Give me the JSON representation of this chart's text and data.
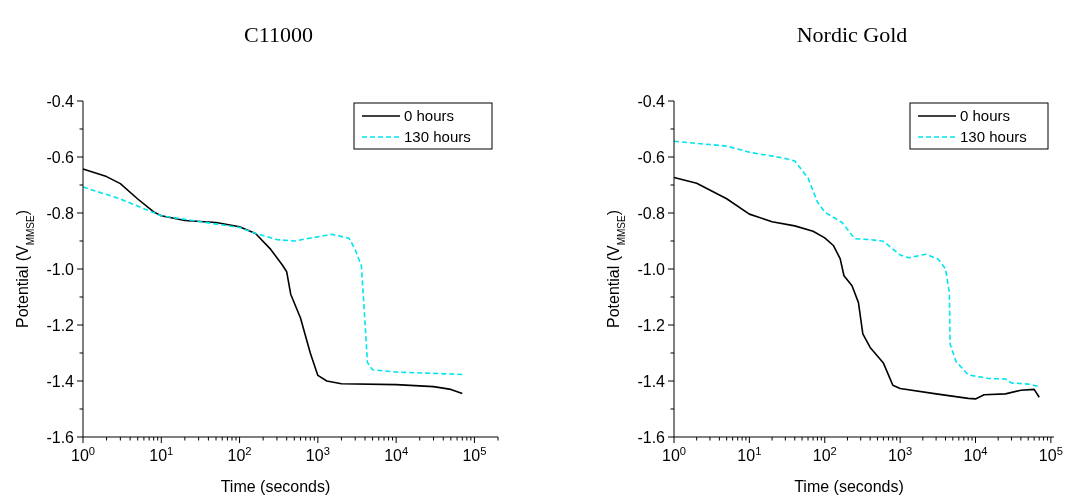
{
  "chart_data": [
    {
      "type": "line",
      "title": "C11000",
      "xlabel": "Time (seconds)",
      "ylabel": "Potential (V$_{MMSE}$)",
      "log": "x",
      "legend": "top right",
      "xlim": [
        1,
        200000
      ],
      "ylim": [
        -1.6,
        -0.4
      ],
      "xticks": [
        {
          "value": 1,
          "label": "10$^{0}$"
        },
        {
          "value": 2,
          "label": null
        },
        {
          "value": 3,
          "label": null
        },
        {
          "value": 4,
          "label": null
        },
        {
          "value": 5,
          "label": null
        },
        {
          "value": 6,
          "label": null
        },
        {
          "value": 7,
          "label": null
        },
        {
          "value": 8,
          "label": null
        },
        {
          "value": 9,
          "label": null
        },
        {
          "value": 10,
          "label": "10$^{1}$"
        },
        {
          "value": 20,
          "label": null
        },
        {
          "value": 30,
          "label": null
        },
        {
          "value": 40,
          "label": null
        },
        {
          "value": 50,
          "label": null
        },
        {
          "value": 60,
          "label": null
        },
        {
          "value": 70,
          "label": null
        },
        {
          "value": 80,
          "label": null
        },
        {
          "value": 90,
          "label": null
        },
        {
          "value": 100,
          "label": "10$^{2}$"
        },
        {
          "value": 200,
          "label": null
        },
        {
          "value": 300,
          "label": null
        },
        {
          "value": 400,
          "label": null
        },
        {
          "value": 500,
          "label": null
        },
        {
          "value": 600,
          "label": null
        },
        {
          "value": 700,
          "label": null
        },
        {
          "value": 800,
          "label": null
        },
        {
          "value": 900,
          "label": null
        },
        {
          "value": 1000,
          "label": "10$^{3}$"
        },
        {
          "value": 2000,
          "label": null
        },
        {
          "value": 3000,
          "label": null
        },
        {
          "value": 4000,
          "label": null
        },
        {
          "value": 5000,
          "label": null
        },
        {
          "value": 6000,
          "label": null
        },
        {
          "value": 7000,
          "label": null
        },
        {
          "value": 8000,
          "label": null
        },
        {
          "value": 9000,
          "label": null
        },
        {
          "value": 10000,
          "label": "10$^{4}$"
        },
        {
          "value": 20000,
          "label": null
        },
        {
          "value": 30000,
          "label": null
        },
        {
          "value": 40000,
          "label": null
        },
        {
          "value": 50000,
          "label": null
        },
        {
          "value": 60000,
          "label": null
        },
        {
          "value": 70000,
          "label": null
        },
        {
          "value": 80000,
          "label": null
        },
        {
          "value": 90000,
          "label": null
        },
        {
          "value": 100000,
          "label": "10$^{5}$"
        },
        {
          "value": 200000,
          "label": null
        }
      ],
      "yticks": [
        {
          "value": -1.6,
          "label": "-1.6"
        },
        {
          "value": -1.5,
          "label": null
        },
        {
          "value": -1.4,
          "label": "-1.4"
        },
        {
          "value": -1.3,
          "label": null
        },
        {
          "value": -1.2,
          "label": "-1.2"
        },
        {
          "value": -1.1,
          "label": null
        },
        {
          "value": -1.0,
          "label": "-1.0"
        },
        {
          "value": -0.9,
          "label": null
        },
        {
          "value": -0.8,
          "label": "-0.8"
        },
        {
          "value": -0.7,
          "label": null
        },
        {
          "value": -0.6,
          "label": "-0.6"
        },
        {
          "value": -0.5,
          "label": null
        },
        {
          "value": -0.4,
          "label": "-0.4"
        }
      ],
      "series": [
        {
          "name": "0 hours",
          "color": "#000000",
          "line_style": "solid",
          "x": [
            1,
            2,
            3,
            5,
            8,
            10,
            20,
            50,
            100,
            160,
            250,
            350,
            400,
            450,
            600,
            800,
            1000,
            1300,
            2000,
            10000,
            30000,
            50000,
            70000
          ],
          "values": [
            -0.643,
            -0.67,
            -0.695,
            -0.75,
            -0.796,
            -0.81,
            -0.827,
            -0.834,
            -0.849,
            -0.873,
            -0.93,
            -0.985,
            -1.01,
            -1.09,
            -1.175,
            -1.3,
            -1.38,
            -1.4,
            -1.41,
            -1.413,
            -1.42,
            -1.43,
            -1.445
          ]
        },
        {
          "name": "130 hours",
          "color": "#00e5ee",
          "line_style": "dashed",
          "x": [
            1,
            3,
            10,
            30,
            100,
            150,
            300,
            500,
            1000,
            1500,
            2500,
            3000,
            3600,
            4000,
            4300,
            5000,
            10000,
            50000,
            70000
          ],
          "values": [
            -0.707,
            -0.75,
            -0.81,
            -0.83,
            -0.852,
            -0.87,
            -0.895,
            -0.9,
            -0.885,
            -0.876,
            -0.89,
            -0.93,
            -0.99,
            -1.19,
            -1.334,
            -1.36,
            -1.368,
            -1.375,
            -1.377
          ]
        }
      ]
    },
    {
      "type": "line",
      "title": "Nordic Gold",
      "xlabel": "Time (seconds)",
      "ylabel": "Potential (V$_{MMSE}$)",
      "log": "x",
      "legend": "top right",
      "xlim": [
        1,
        110000
      ],
      "ylim": [
        -1.6,
        -0.4
      ],
      "xticks": [
        {
          "value": 1,
          "label": "10$^{0}$"
        },
        {
          "value": 2,
          "label": null
        },
        {
          "value": 3,
          "label": null
        },
        {
          "value": 4,
          "label": null
        },
        {
          "value": 5,
          "label": null
        },
        {
          "value": 6,
          "label": null
        },
        {
          "value": 7,
          "label": null
        },
        {
          "value": 8,
          "label": null
        },
        {
          "value": 9,
          "label": null
        },
        {
          "value": 10,
          "label": "10$^{1}$"
        },
        {
          "value": 20,
          "label": null
        },
        {
          "value": 30,
          "label": null
        },
        {
          "value": 40,
          "label": null
        },
        {
          "value": 50,
          "label": null
        },
        {
          "value": 60,
          "label": null
        },
        {
          "value": 70,
          "label": null
        },
        {
          "value": 80,
          "label": null
        },
        {
          "value": 90,
          "label": null
        },
        {
          "value": 100,
          "label": "10$^{2}$"
        },
        {
          "value": 200,
          "label": null
        },
        {
          "value": 300,
          "label": null
        },
        {
          "value": 400,
          "label": null
        },
        {
          "value": 500,
          "label": null
        },
        {
          "value": 600,
          "label": null
        },
        {
          "value": 700,
          "label": null
        },
        {
          "value": 800,
          "label": null
        },
        {
          "value": 900,
          "label": null
        },
        {
          "value": 1000,
          "label": "10$^{3}$"
        },
        {
          "value": 2000,
          "label": null
        },
        {
          "value": 3000,
          "label": null
        },
        {
          "value": 4000,
          "label": null
        },
        {
          "value": 5000,
          "label": null
        },
        {
          "value": 6000,
          "label": null
        },
        {
          "value": 7000,
          "label": null
        },
        {
          "value": 8000,
          "label": null
        },
        {
          "value": 9000,
          "label": null
        },
        {
          "value": 10000,
          "label": "10$^{4}$"
        },
        {
          "value": 20000,
          "label": null
        },
        {
          "value": 30000,
          "label": null
        },
        {
          "value": 40000,
          "label": null
        },
        {
          "value": 50000,
          "label": null
        },
        {
          "value": 60000,
          "label": null
        },
        {
          "value": 70000,
          "label": null
        },
        {
          "value": 80000,
          "label": null
        },
        {
          "value": 90000,
          "label": null
        },
        {
          "value": 100000,
          "label": "10$^{5}$"
        }
      ],
      "yticks": [
        {
          "value": -1.6,
          "label": "-1.6"
        },
        {
          "value": -1.5,
          "label": null
        },
        {
          "value": -1.4,
          "label": "-1.4"
        },
        {
          "value": -1.3,
          "label": null
        },
        {
          "value": -1.2,
          "label": "-1.2"
        },
        {
          "value": -1.1,
          "label": null
        },
        {
          "value": -1.0,
          "label": "-1.0"
        },
        {
          "value": -0.9,
          "label": null
        },
        {
          "value": -0.8,
          "label": "-0.8"
        },
        {
          "value": -0.7,
          "label": null
        },
        {
          "value": -0.6,
          "label": "-0.6"
        },
        {
          "value": -0.5,
          "label": null
        },
        {
          "value": -0.4,
          "label": "-0.4"
        }
      ],
      "series": [
        {
          "name": "0 hours",
          "color": "#000000",
          "line_style": "solid",
          "x": [
            1,
            2,
            5,
            10,
            20,
            40,
            70,
            100,
            130,
            160,
            180,
            230,
            280,
            320,
            400,
            600,
            700,
            800,
            1000,
            3000,
            8000,
            10000,
            13000,
            25000,
            40000,
            60000,
            70000
          ],
          "values": [
            -0.673,
            -0.694,
            -0.749,
            -0.804,
            -0.831,
            -0.846,
            -0.865,
            -0.889,
            -0.916,
            -0.963,
            -1.024,
            -1.06,
            -1.12,
            -1.232,
            -1.28,
            -1.336,
            -1.378,
            -1.415,
            -1.427,
            -1.446,
            -1.462,
            -1.464,
            -1.449,
            -1.446,
            -1.433,
            -1.43,
            -1.458
          ]
        },
        {
          "name": "130 hours",
          "color": "#00e5ee",
          "line_style": "dashed",
          "x": [
            1,
            5,
            10,
            30,
            40,
            60,
            80,
            100,
            170,
            250,
            400,
            600,
            1000,
            1300,
            2200,
            3200,
            4000,
            4500,
            4600,
            5500,
            8000,
            15000,
            25000,
            30000,
            50000,
            70000
          ],
          "values": [
            -0.544,
            -0.561,
            -0.583,
            -0.605,
            -0.614,
            -0.675,
            -0.761,
            -0.797,
            -0.834,
            -0.892,
            -0.895,
            -0.901,
            -0.95,
            -0.96,
            -0.947,
            -0.965,
            -0.999,
            -1.085,
            -1.268,
            -1.33,
            -1.378,
            -1.391,
            -1.393,
            -1.407,
            -1.411,
            -1.42
          ]
        }
      ]
    }
  ]
}
